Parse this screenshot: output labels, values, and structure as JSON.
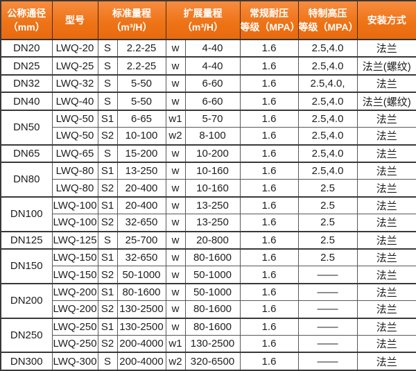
{
  "colors": {
    "header_orange": "#ee7418",
    "header_orange_light": "#f78c3f",
    "header_text": "#ffffff",
    "body_text": "#1d1d1d",
    "border_dark": "#383838"
  },
  "table": {
    "headers": [
      {
        "id": "diameter",
        "label": "公称通径\n（mm）"
      },
      {
        "id": "model",
        "label": "型号"
      },
      {
        "id": "std_range",
        "label": "标准量程\n（m³/H）"
      },
      {
        "id": "ext_range",
        "label": "扩展量程\n（m³/H）"
      },
      {
        "id": "regular_pressure",
        "label": "常规耐压\n等级（MPA）"
      },
      {
        "id": "special_pressure",
        "label": "特制高压\n等级（MPA）"
      },
      {
        "id": "install",
        "label": "安装方式"
      }
    ],
    "groups": [
      {
        "diameter": "DN20",
        "rows": [
          [
            "LWQ-20",
            "S",
            "2.2-25",
            "w",
            "4-40",
            "1.6",
            "2.5,4.0",
            "法兰"
          ]
        ]
      },
      {
        "diameter": "DN25",
        "rows": [
          [
            "LWQ-25",
            "S",
            "2.2-25",
            "w",
            "4-40",
            "1.6",
            "2.5,4.0",
            "法兰(螺纹)"
          ]
        ]
      },
      {
        "diameter": "DN32",
        "rows": [
          [
            "LWQ-32",
            "S",
            "5-50",
            "w",
            "6-60",
            "1.6",
            "2.5,4.0,",
            "法兰"
          ]
        ]
      },
      {
        "diameter": "DN40",
        "rows": [
          [
            "LWQ-40",
            "S",
            "5-50",
            "w",
            "6-60",
            "1.6",
            "2.5,4.0",
            "法兰(螺纹)"
          ]
        ]
      },
      {
        "diameter": "DN50",
        "rows": [
          [
            "LWQ-50",
            "S1",
            "6-65",
            "w1",
            "5-70",
            "1.6",
            "2.5,4.0",
            "法兰"
          ],
          [
            "LWQ-50",
            "S2",
            "10-100",
            "w2",
            "8-100",
            "1.6",
            "2.5,4.0",
            "法兰"
          ]
        ]
      },
      {
        "diameter": "DN65",
        "rows": [
          [
            "LWQ-65",
            "S",
            "15-200",
            "w",
            "10-200",
            "1.6",
            "2.5,4.0",
            "法兰"
          ]
        ]
      },
      {
        "diameter": "DN80",
        "rows": [
          [
            "LWQ-80",
            "S1",
            "13-250",
            "w",
            "10-160",
            "1.6",
            "2.5,4.0",
            "法兰"
          ],
          [
            "LWQ-80",
            "S2",
            "20-400",
            "w",
            "10-160",
            "1.6",
            "2.5",
            "法兰"
          ]
        ]
      },
      {
        "diameter": "DN100",
        "rows": [
          [
            "LWQ-100",
            "S1",
            "20-400",
            "w",
            "13-250",
            "1.6",
            "2.5",
            "法兰"
          ],
          [
            "LWQ-100",
            "S2",
            "32-650",
            "w",
            "13-250",
            "1.6",
            "2.5",
            "法兰"
          ]
        ]
      },
      {
        "diameter": "DN125",
        "rows": [
          [
            "LWQ-125",
            "S",
            "25-700",
            "w",
            "20-800",
            "1.6",
            "2.5",
            "法兰"
          ]
        ]
      },
      {
        "diameter": "DN150",
        "rows": [
          [
            "LWQ-150",
            "S1",
            "32-650",
            "w",
            "80-1600",
            "1.6",
            "2.5",
            "法兰"
          ],
          [
            "LWQ-150",
            "S2",
            "50-1000",
            "w",
            "50-1000",
            "1.6",
            "——",
            "法兰"
          ]
        ]
      },
      {
        "diameter": "DN200",
        "rows": [
          [
            "LWQ-200",
            "S1",
            "80-1600",
            "w",
            "50-1000",
            "1.6",
            "——",
            "法兰"
          ],
          [
            "LWQ-200",
            "S2",
            "130-2500",
            "w",
            "80-1600",
            "1.6",
            "——",
            "法兰"
          ]
        ]
      },
      {
        "diameter": "DN250",
        "rows": [
          [
            "LWQ-250",
            "S1",
            "130-2500",
            "w",
            "80-1600",
            "1.6",
            "——",
            "法兰"
          ],
          [
            "LWQ-250",
            "S2",
            "200-4000",
            "w1",
            "130-2500",
            "1.6",
            "——",
            "法兰"
          ]
        ]
      },
      {
        "diameter": "DN300",
        "rows": [
          [
            "LWQ-300",
            "S",
            "200-4000",
            "w2",
            "320-6500",
            "1.6",
            "——",
            "法兰"
          ]
        ]
      }
    ]
  }
}
